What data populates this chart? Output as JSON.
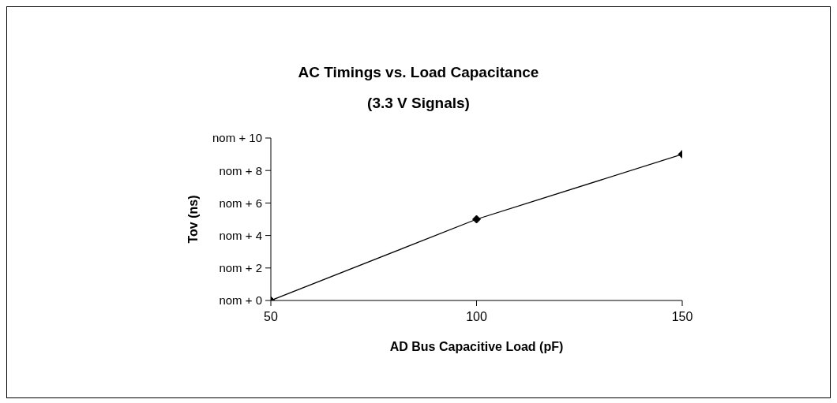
{
  "chart_data": {
    "type": "line",
    "title": "AC Timings vs. Load Capacitance",
    "subtitle": "(3.3 V Signals)",
    "xlabel": "AD Bus Capacitive Load (pF)",
    "ylabel": "Tov (ns)",
    "x": [
      50,
      100,
      150
    ],
    "series": [
      {
        "color": "#000000",
        "values": [
          0,
          5,
          9
        ]
      }
    ],
    "xlim": [
      50,
      150
    ],
    "xticks": [
      50,
      100,
      150
    ],
    "ylim": [
      0,
      10
    ],
    "yticks": [
      {
        "value": 0,
        "label": "nom + 0"
      },
      {
        "value": 2,
        "label": "nom + 2"
      },
      {
        "value": 4,
        "label": "nom + 4"
      },
      {
        "value": 6,
        "label": "nom + 6"
      },
      {
        "value": 8,
        "label": "nom + 8"
      },
      {
        "value": 10,
        "label": "nom + 10"
      }
    ],
    "grid": false,
    "legend": false,
    "marker": "diamond",
    "line_style": "solid"
  }
}
